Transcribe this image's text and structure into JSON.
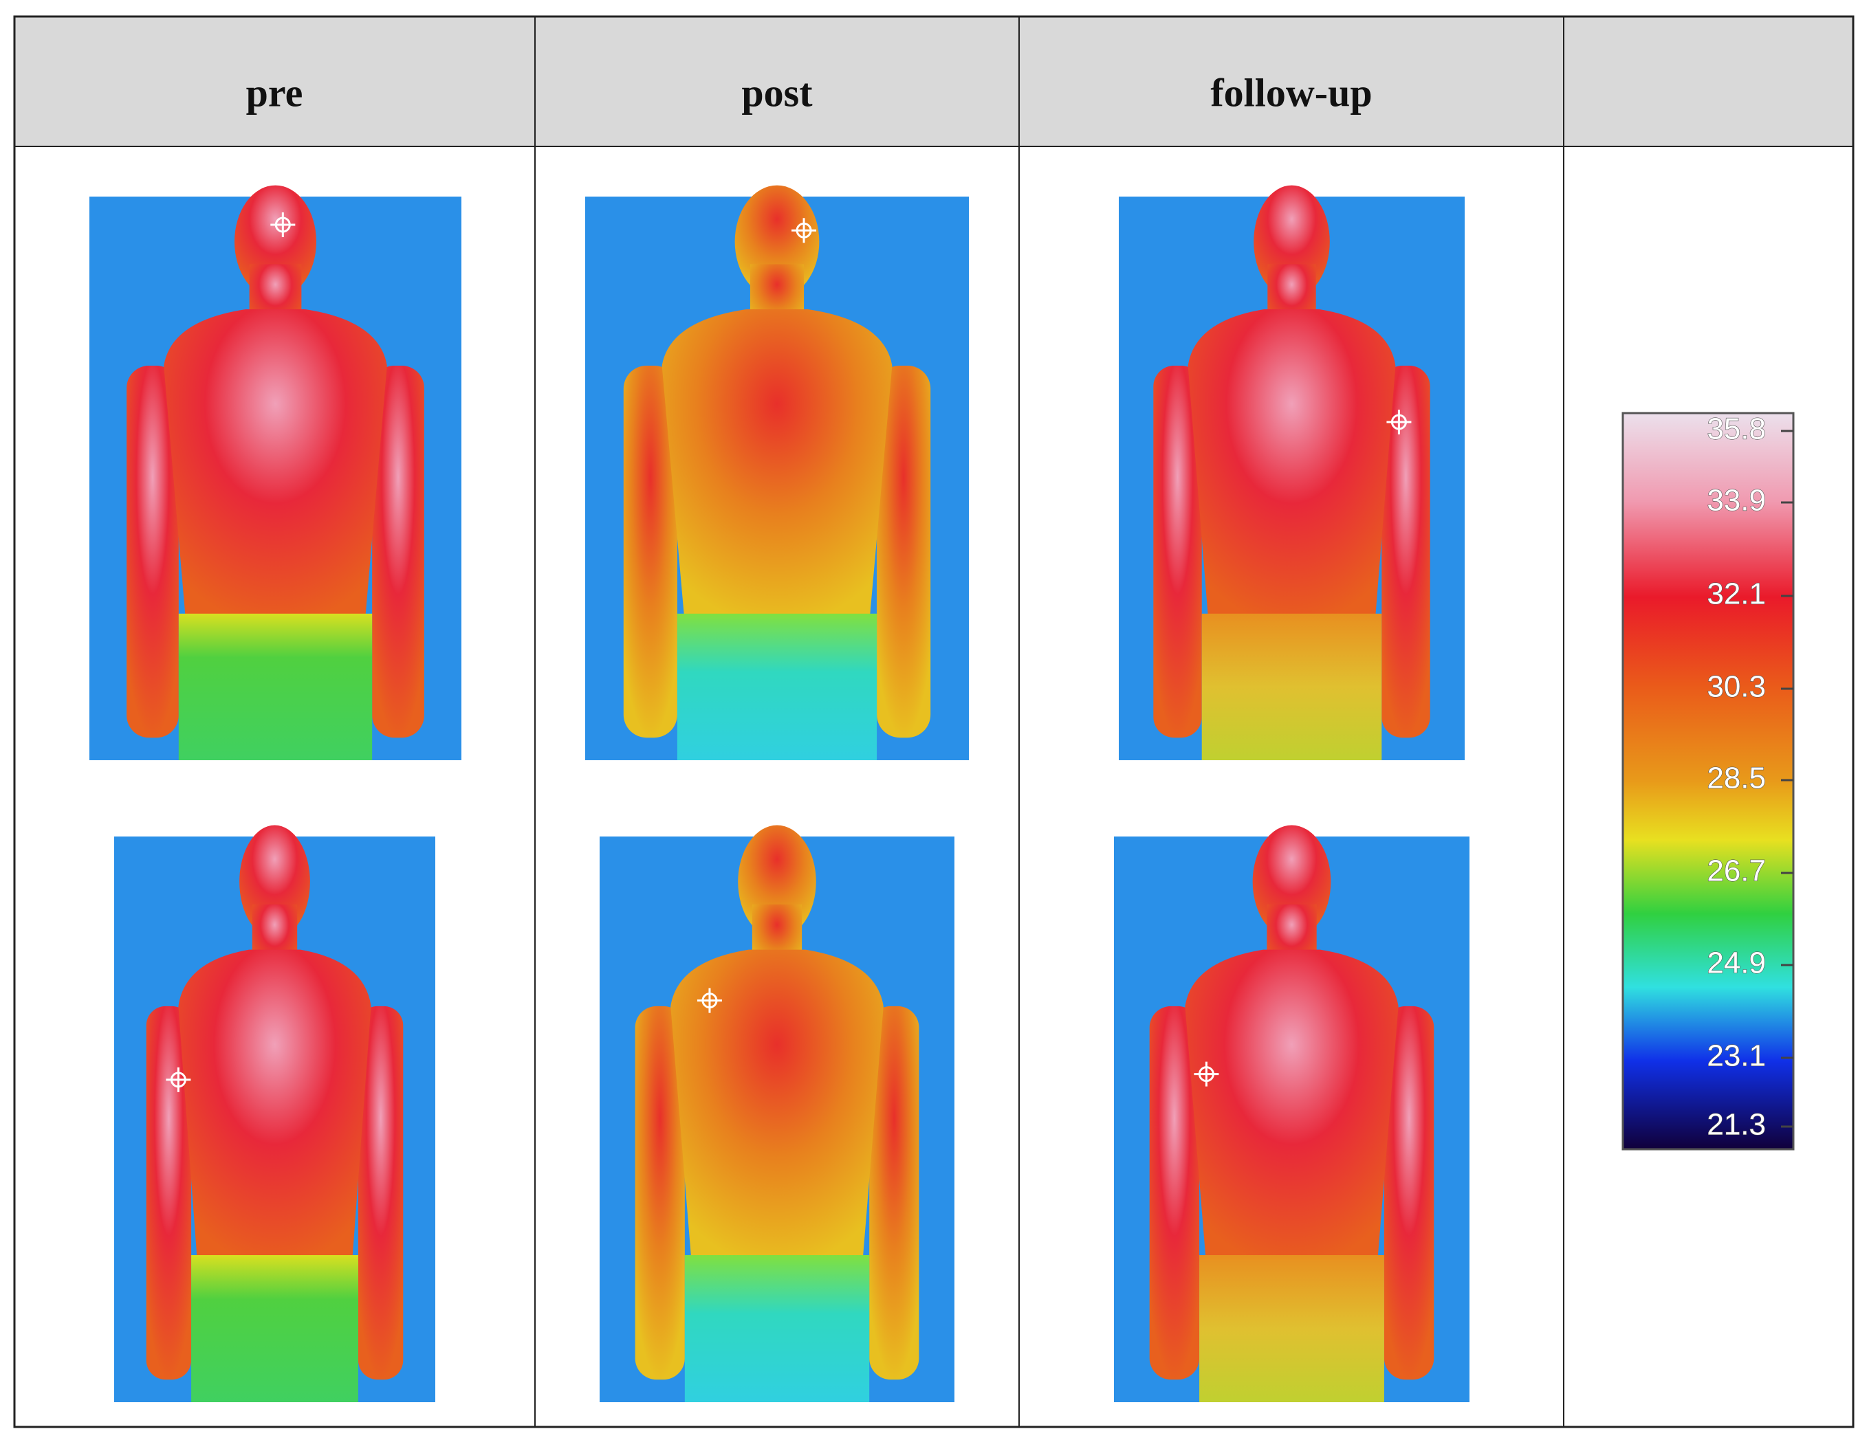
{
  "header": {
    "columns": [
      "pre",
      "post",
      "follow-up"
    ]
  },
  "scale": {
    "labels": [
      35.8,
      33.9,
      32.1,
      30.3,
      28.5,
      26.7,
      24.9,
      23.1,
      21.3
    ]
  }
}
